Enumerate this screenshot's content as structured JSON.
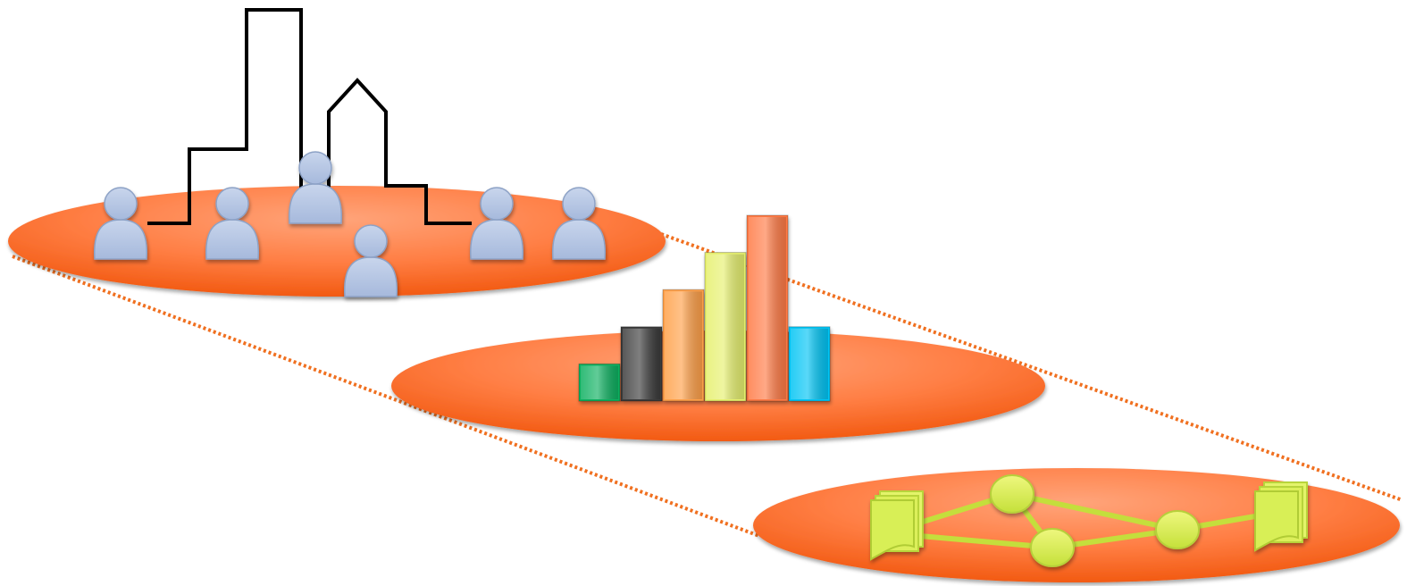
{
  "colors": {
    "platform_light": "#ff9a6e",
    "platform_mid": "#ff7a3c",
    "platform_dark": "#f05a10",
    "connector": "#f07020",
    "skyline": "#000000",
    "person_fill": "#b3c4e0",
    "person_stroke": "#8da2c6",
    "node_fill": "#d4eb52",
    "node_edge": "#b6d03a",
    "doc_fill": "#d8ef56"
  },
  "levels": [
    {
      "name": "city-people-level",
      "icons": [
        "skyline-outline-icon",
        "person-icon"
      ],
      "person_count": 6
    },
    {
      "name": "statistics-level",
      "icons": [
        "bar-chart-icon"
      ]
    },
    {
      "name": "document-graph-level",
      "icons": [
        "document-stack-icon",
        "graph-node-icon"
      ],
      "node_count": 3,
      "doc_stack_count": 2
    }
  ],
  "bar_chart": {
    "colors": [
      "#10b060",
      "#3a3a3a",
      "#ffa04a",
      "#e6f06e",
      "#ff7a45",
      "#00c4f4"
    ],
    "values": [
      1,
      2,
      3,
      4,
      5,
      2
    ]
  }
}
